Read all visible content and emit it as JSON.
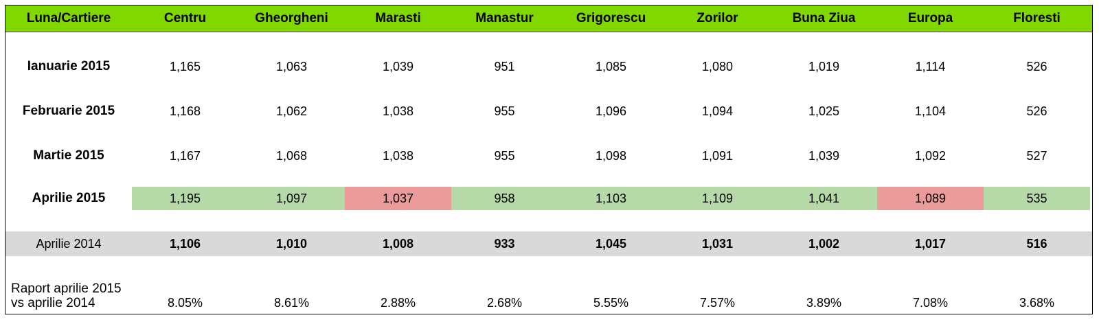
{
  "colors": {
    "header_bg": "#80d800",
    "increase": "#b6d9a8",
    "decrease": "#eb9c9a",
    "reference_row": "#d9d9d9"
  },
  "chart_data": {
    "type": "table",
    "corner_label": "Luna/Cartiere",
    "columns": [
      "Centru",
      "Gheorgheni",
      "Marasti",
      "Manastur",
      "Grigorescu",
      "Zorilor",
      "Buna Ziua",
      "Europa",
      "Floresti"
    ],
    "rows": [
      {
        "label": "Ianuarie 2015",
        "values": [
          "1,165",
          "1,063",
          "1,039",
          "951",
          "1,085",
          "1,080",
          "1,019",
          "1,114",
          "526"
        ]
      },
      {
        "label": "Februarie 2015",
        "values": [
          "1,168",
          "1,062",
          "1,038",
          "955",
          "1,096",
          "1,094",
          "1,025",
          "1,104",
          "526"
        ]
      },
      {
        "label": "Martie 2015",
        "values": [
          "1,167",
          "1,068",
          "1,038",
          "955",
          "1,098",
          "1,091",
          "1,039",
          "1,092",
          "527"
        ]
      },
      {
        "label": "Aprilie 2015",
        "values": [
          "1,195",
          "1,097",
          "1,037",
          "958",
          "1,103",
          "1,109",
          "1,041",
          "1,089",
          "535"
        ],
        "highlight": [
          "increase",
          "increase",
          "decrease",
          "increase",
          "increase",
          "increase",
          "increase",
          "decrease",
          "increase"
        ]
      }
    ],
    "reference_row": {
      "label": "Aprilie 2014",
      "values": [
        "1,106",
        "1,010",
        "1,008",
        "933",
        "1,045",
        "1,031",
        "1,002",
        "1,017",
        "516"
      ]
    },
    "ratio_row": {
      "label_line1": "Raport aprilie 2015",
      "label_line2": "vs aprilie 2014",
      "values": [
        "8.05%",
        "8.61%",
        "2.88%",
        "2.68%",
        "5.55%",
        "7.57%",
        "3.89%",
        "7.08%",
        "3.68%"
      ]
    }
  }
}
